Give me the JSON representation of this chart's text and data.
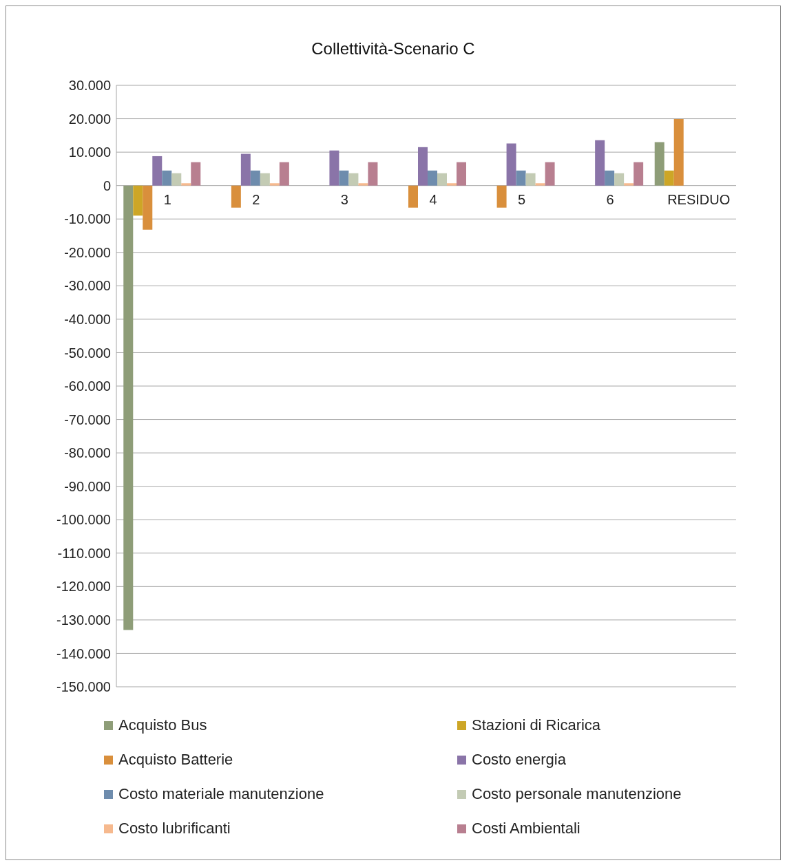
{
  "chart_data": {
    "type": "bar",
    "title": "Collettività-Scenario C",
    "categories": [
      "1",
      "2",
      "3",
      "4",
      "5",
      "6",
      "RESIDUO"
    ],
    "series": [
      {
        "name": "Acquisto Bus",
        "color": "#8e9d78",
        "values": [
          -133000,
          null,
          null,
          null,
          null,
          null,
          13000
        ]
      },
      {
        "name": "Stazioni di Ricarica",
        "color": "#cda626",
        "values": [
          -9000,
          null,
          null,
          null,
          null,
          null,
          4500
        ]
      },
      {
        "name": "Acquisto Batterie",
        "color": "#d98f3c",
        "values": [
          -13200,
          -6600,
          null,
          -6600,
          -6600,
          null,
          19900
        ]
      },
      {
        "name": "Costo energia",
        "color": "#8a74a8",
        "values": [
          8800,
          9500,
          10500,
          11500,
          12600,
          13600,
          null
        ]
      },
      {
        "name": "Costo materiale manutenzione",
        "color": "#6e8cad",
        "values": [
          4500,
          4500,
          4500,
          4500,
          4500,
          4500,
          null
        ]
      },
      {
        "name": "Costo personale manutenzione",
        "color": "#c3cbb4",
        "values": [
          3700,
          3700,
          3700,
          3700,
          3700,
          3700,
          null
        ]
      },
      {
        "name": "Costo lubrificanti",
        "color": "#f6b98e",
        "values": [
          700,
          700,
          700,
          700,
          700,
          700,
          null
        ]
      },
      {
        "name": "Costi Ambientali",
        "color": "#b87f90",
        "values": [
          7000,
          7000,
          7000,
          7000,
          7000,
          7000,
          null
        ]
      }
    ],
    "ylim": [
      -150000,
      30000
    ],
    "yticks": [
      {
        "value": -150000,
        "label": "-150.000"
      },
      {
        "value": -140000,
        "label": "-140.000"
      },
      {
        "value": -130000,
        "label": "-130.000"
      },
      {
        "value": -120000,
        "label": "-120.000"
      },
      {
        "value": -110000,
        "label": "-110.000"
      },
      {
        "value": -100000,
        "label": "-100.000"
      },
      {
        "value": -90000,
        "label": "-90.000"
      },
      {
        "value": -80000,
        "label": "-80.000"
      },
      {
        "value": -70000,
        "label": "-70.000"
      },
      {
        "value": -60000,
        "label": "-60.000"
      },
      {
        "value": -50000,
        "label": "-50.000"
      },
      {
        "value": -40000,
        "label": "-40.000"
      },
      {
        "value": -30000,
        "label": "-30.000"
      },
      {
        "value": -20000,
        "label": "-20.000"
      },
      {
        "value": -10000,
        "label": "-10.000"
      },
      {
        "value": 0,
        "label": "0"
      },
      {
        "value": 10000,
        "label": "10.000"
      },
      {
        "value": 20000,
        "label": "20.000"
      },
      {
        "value": 30000,
        "label": "30.000"
      }
    ],
    "grid": "y",
    "legend": "bottom"
  }
}
